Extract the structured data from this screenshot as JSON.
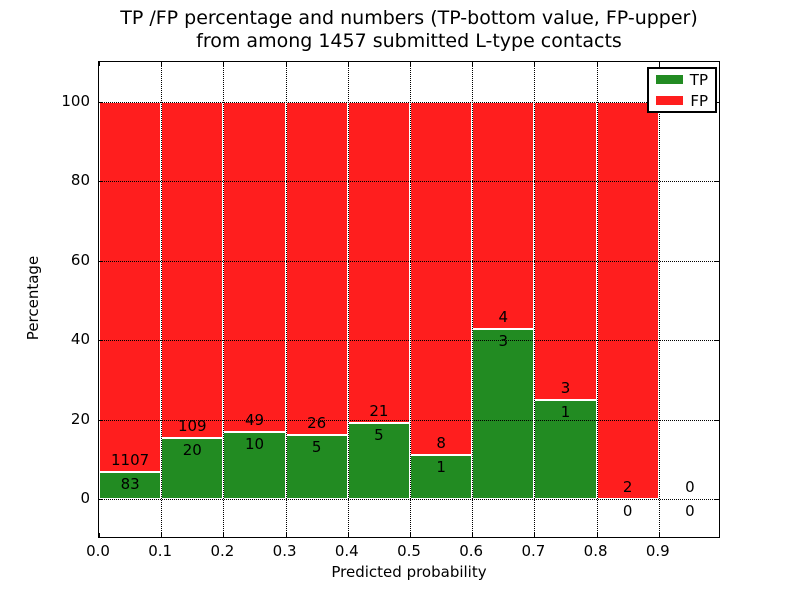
{
  "title": {
    "line1": "TP /FP percentage and numbers (TP-bottom value, FP-upper)",
    "line2": "from among 1457 submitted L-type contacts"
  },
  "axes": {
    "x_label": "Predicted probability",
    "y_label": "Percentage",
    "x_tick_labels": [
      "0.0",
      "0.1",
      "0.2",
      "0.3",
      "0.4",
      "0.5",
      "0.6",
      "0.7",
      "0.8",
      "0.9"
    ],
    "x_tick_values": [
      0.0,
      0.1,
      0.2,
      0.3,
      0.4,
      0.5,
      0.6,
      0.7,
      0.8,
      0.9
    ],
    "y_tick_labels": [
      "0",
      "20",
      "40",
      "60",
      "80",
      "100"
    ],
    "y_tick_values": [
      0,
      20,
      40,
      60,
      80,
      100
    ]
  },
  "legend": {
    "items": [
      {
        "label": "TP",
        "color": "#228b22"
      },
      {
        "label": "FP",
        "color": "#ff1e1e"
      }
    ]
  },
  "colors": {
    "tp": "#228b22",
    "fp": "#ff1e1e",
    "bar_edge": "#ffffff",
    "grid": "#000000"
  },
  "chart_data": {
    "type": "bar",
    "subtype": "stacked_percentage_histogram",
    "title": "TP /FP percentage and numbers (TP-bottom value, FP-upper) from among 1457 submitted L-type contacts",
    "xlabel": "Predicted probability",
    "ylabel": "Percentage",
    "xlim": [
      0.0,
      1.0
    ],
    "ylim": [
      -10,
      110
    ],
    "grid": true,
    "legend_position": "upper right",
    "bin_width": 0.1,
    "bin_starts": [
      0.0,
      0.1,
      0.2,
      0.3,
      0.4,
      0.5,
      0.6,
      0.7,
      0.8,
      0.9
    ],
    "series": [
      {
        "name": "TP",
        "counts": [
          83,
          20,
          10,
          5,
          5,
          1,
          3,
          1,
          0,
          0
        ]
      },
      {
        "name": "FP",
        "counts": [
          1107,
          109,
          49,
          26,
          21,
          8,
          4,
          3,
          2,
          0
        ]
      }
    ],
    "tp_percent": [
      6.97,
      15.5,
      16.95,
      16.13,
      19.23,
      11.11,
      42.86,
      25.0,
      0.0,
      null
    ],
    "total_submitted": 1457
  }
}
